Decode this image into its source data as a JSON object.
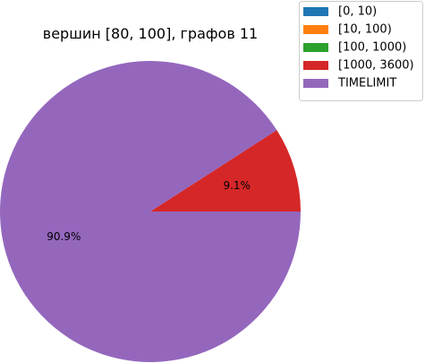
{
  "chart_data": {
    "type": "pie",
    "title": "вершин [80, 100], графов 11",
    "categories": [
      "[0, 10)",
      "[10, 100)",
      "[100, 1000)",
      "[1000, 3600)",
      "TIMELIMIT"
    ],
    "values": [
      0,
      0,
      0,
      1,
      10
    ],
    "percent_labels": [
      "",
      "",
      "",
      "9.1%",
      "90.9%"
    ],
    "colors": [
      "#1f77b4",
      "#ff7f0e",
      "#2ca02c",
      "#d62728",
      "#9467bd"
    ],
    "legend_position": "top-right"
  }
}
